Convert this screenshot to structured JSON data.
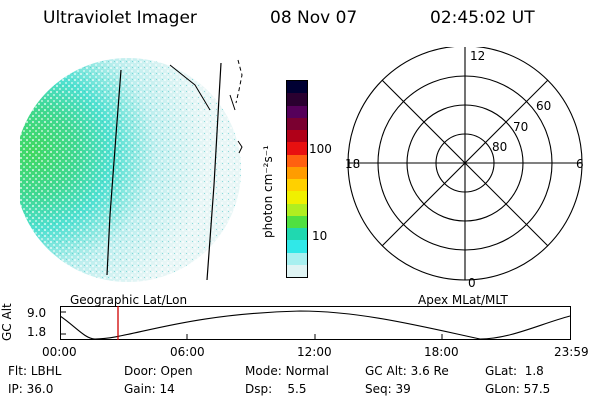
{
  "header": {
    "instrument": "Ultraviolet Imager",
    "date": "08 Nov 07",
    "time": "02:45:02 UT"
  },
  "colorbar": {
    "label": "photon cm⁻²s⁻¹",
    "ticks": [
      "100",
      "10"
    ],
    "colors": [
      "#000033",
      "#2a0030",
      "#55005a",
      "#7a0030",
      "#b00018",
      "#e81010",
      "#ff6010",
      "#ff9c00",
      "#ffd000",
      "#f0f000",
      "#b0ee20",
      "#50e040",
      "#20d8b0",
      "#30e8e8",
      "#a8f0f0",
      "#e0f4f4"
    ]
  },
  "polar_plot": {
    "mlt_labels": {
      "top": "12",
      "left": "18",
      "right": "6",
      "bottom": "0"
    },
    "lat_labels": [
      "60",
      "70",
      "80"
    ]
  },
  "orbit_plot": {
    "left_title": "Geographic Lat/Lon",
    "right_title": "Apex MLat/MLT",
    "axis_label": "GC Alt",
    "y_ticks": [
      "9.0",
      "1.8"
    ],
    "x_ticks": [
      "00:00",
      "06:00",
      "12:00",
      "18:00",
      "23:59"
    ],
    "marker_color": "#d00000"
  },
  "status": {
    "row1": [
      {
        "label": "Flt:",
        "value": "LBHL"
      },
      {
        "label": "Door:",
        "value": "Open"
      },
      {
        "label": "Mode:",
        "value": "Normal"
      },
      {
        "label": "GC Alt:",
        "value": "3.6 Re"
      },
      {
        "label": "GLat:",
        "value": "1.8"
      }
    ],
    "row2": [
      {
        "label": "IP:",
        "value": "36.0"
      },
      {
        "label": "Gain:",
        "value": "14"
      },
      {
        "label": "Dsp:",
        "value": "5.5"
      },
      {
        "label": "Seq:",
        "value": "39"
      },
      {
        "label": "GLon:",
        "value": "57.5"
      }
    ]
  }
}
